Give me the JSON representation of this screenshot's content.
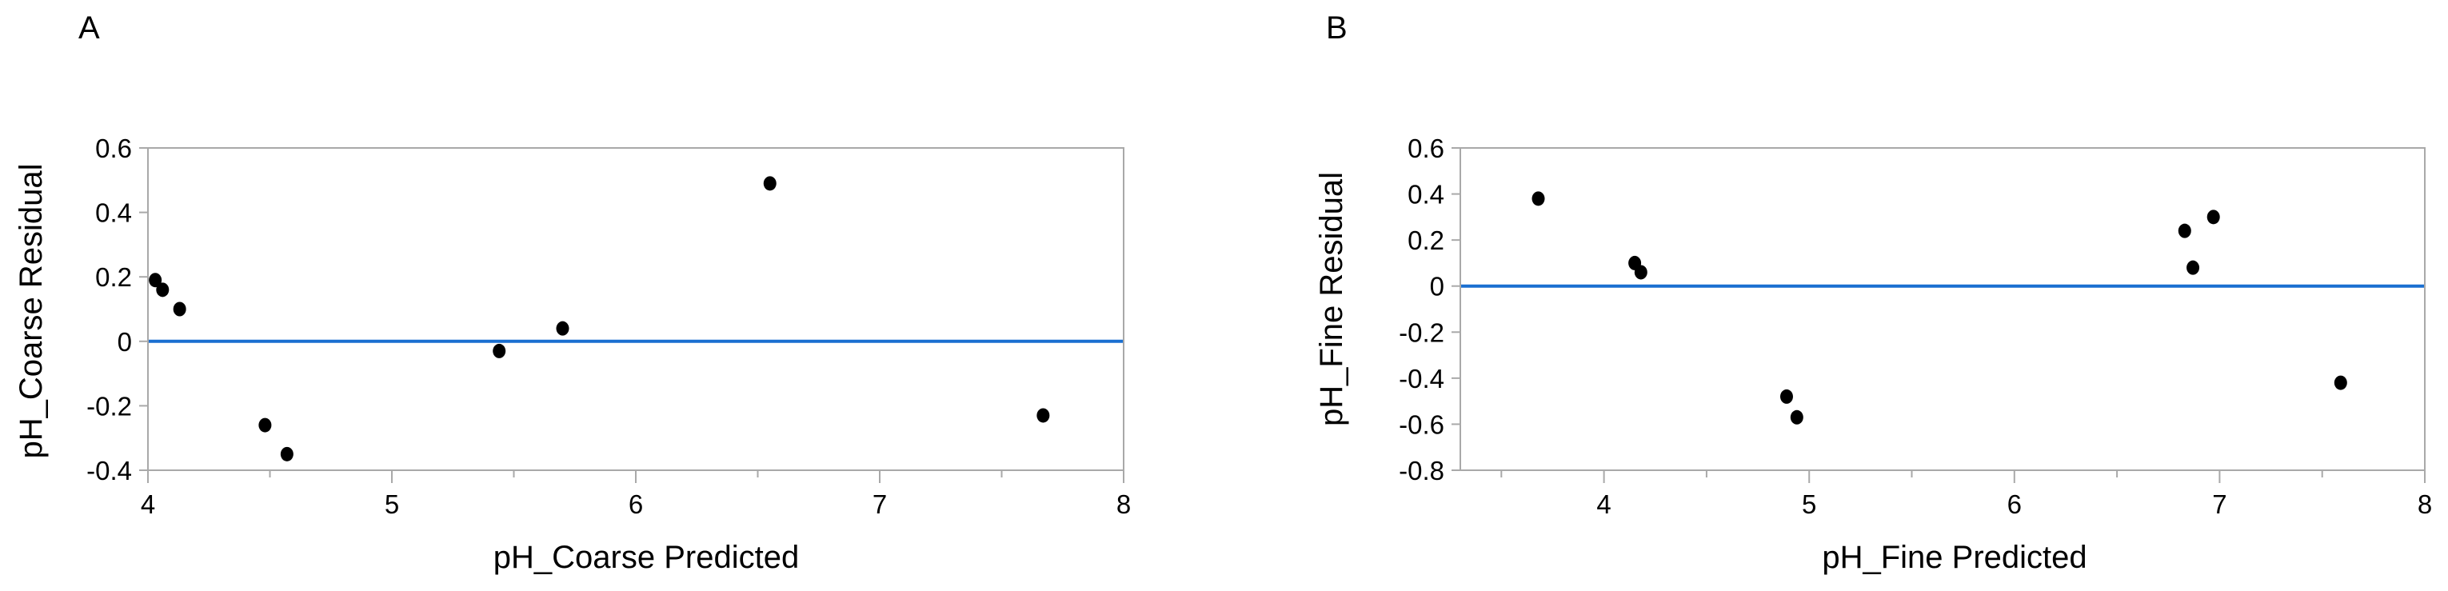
{
  "chart_data": [
    {
      "type": "scatter",
      "panel_label": "A",
      "xlabel": "pH_Coarse Predicted",
      "ylabel": "pH_Coarse Residual",
      "xlim": [
        4,
        8
      ],
      "ylim": [
        -0.4,
        0.6
      ],
      "x_ticks": [
        4,
        5,
        6,
        7,
        8
      ],
      "x_minor_ticks": [
        4.5,
        5.5,
        6.5,
        7.5
      ],
      "y_ticks": [
        -0.4,
        -0.2,
        0,
        0.2,
        0.4,
        0.6
      ],
      "y_tick_labels": [
        "-0.4",
        "-0.2",
        "0",
        "0.2",
        "0.4",
        "0.6"
      ],
      "reference_line_y": 0,
      "reference_line_color": "#1a6fd1",
      "marker_color": "#000000",
      "grid": false,
      "points": [
        {
          "x": 4.03,
          "y": 0.19
        },
        {
          "x": 4.06,
          "y": 0.16
        },
        {
          "x": 4.13,
          "y": 0.1
        },
        {
          "x": 4.48,
          "y": -0.26
        },
        {
          "x": 4.57,
          "y": -0.35
        },
        {
          "x": 5.44,
          "y": -0.03
        },
        {
          "x": 5.7,
          "y": 0.04
        },
        {
          "x": 6.55,
          "y": 0.49
        },
        {
          "x": 7.67,
          "y": -0.23
        }
      ]
    },
    {
      "type": "scatter",
      "panel_label": "B",
      "xlabel": "pH_Fine Predicted",
      "ylabel": "pH_Fine Residual",
      "xlim": [
        3.3,
        8
      ],
      "ylim": [
        -0.8,
        0.6
      ],
      "x_ticks": [
        4,
        5,
        6,
        7,
        8
      ],
      "x_minor_ticks": [
        3.5,
        4.5,
        5.5,
        6.5,
        7.5
      ],
      "y_ticks": [
        -0.8,
        -0.6,
        -0.4,
        -0.2,
        0,
        0.2,
        0.4,
        0.6
      ],
      "y_tick_labels": [
        "-0.8",
        "-0.6",
        "-0.4",
        "-0.2",
        "0",
        "0.2",
        "0.4",
        "0.6"
      ],
      "reference_line_y": 0,
      "reference_line_color": "#1a6fd1",
      "marker_color": "#000000",
      "grid": false,
      "points": [
        {
          "x": 3.68,
          "y": 0.38
        },
        {
          "x": 4.15,
          "y": 0.1
        },
        {
          "x": 4.18,
          "y": 0.06
        },
        {
          "x": 4.89,
          "y": -0.48
        },
        {
          "x": 4.94,
          "y": -0.57
        },
        {
          "x": 6.83,
          "y": 0.24
        },
        {
          "x": 6.87,
          "y": 0.08
        },
        {
          "x": 6.97,
          "y": 0.3
        },
        {
          "x": 7.59,
          "y": -0.42
        }
      ]
    }
  ]
}
